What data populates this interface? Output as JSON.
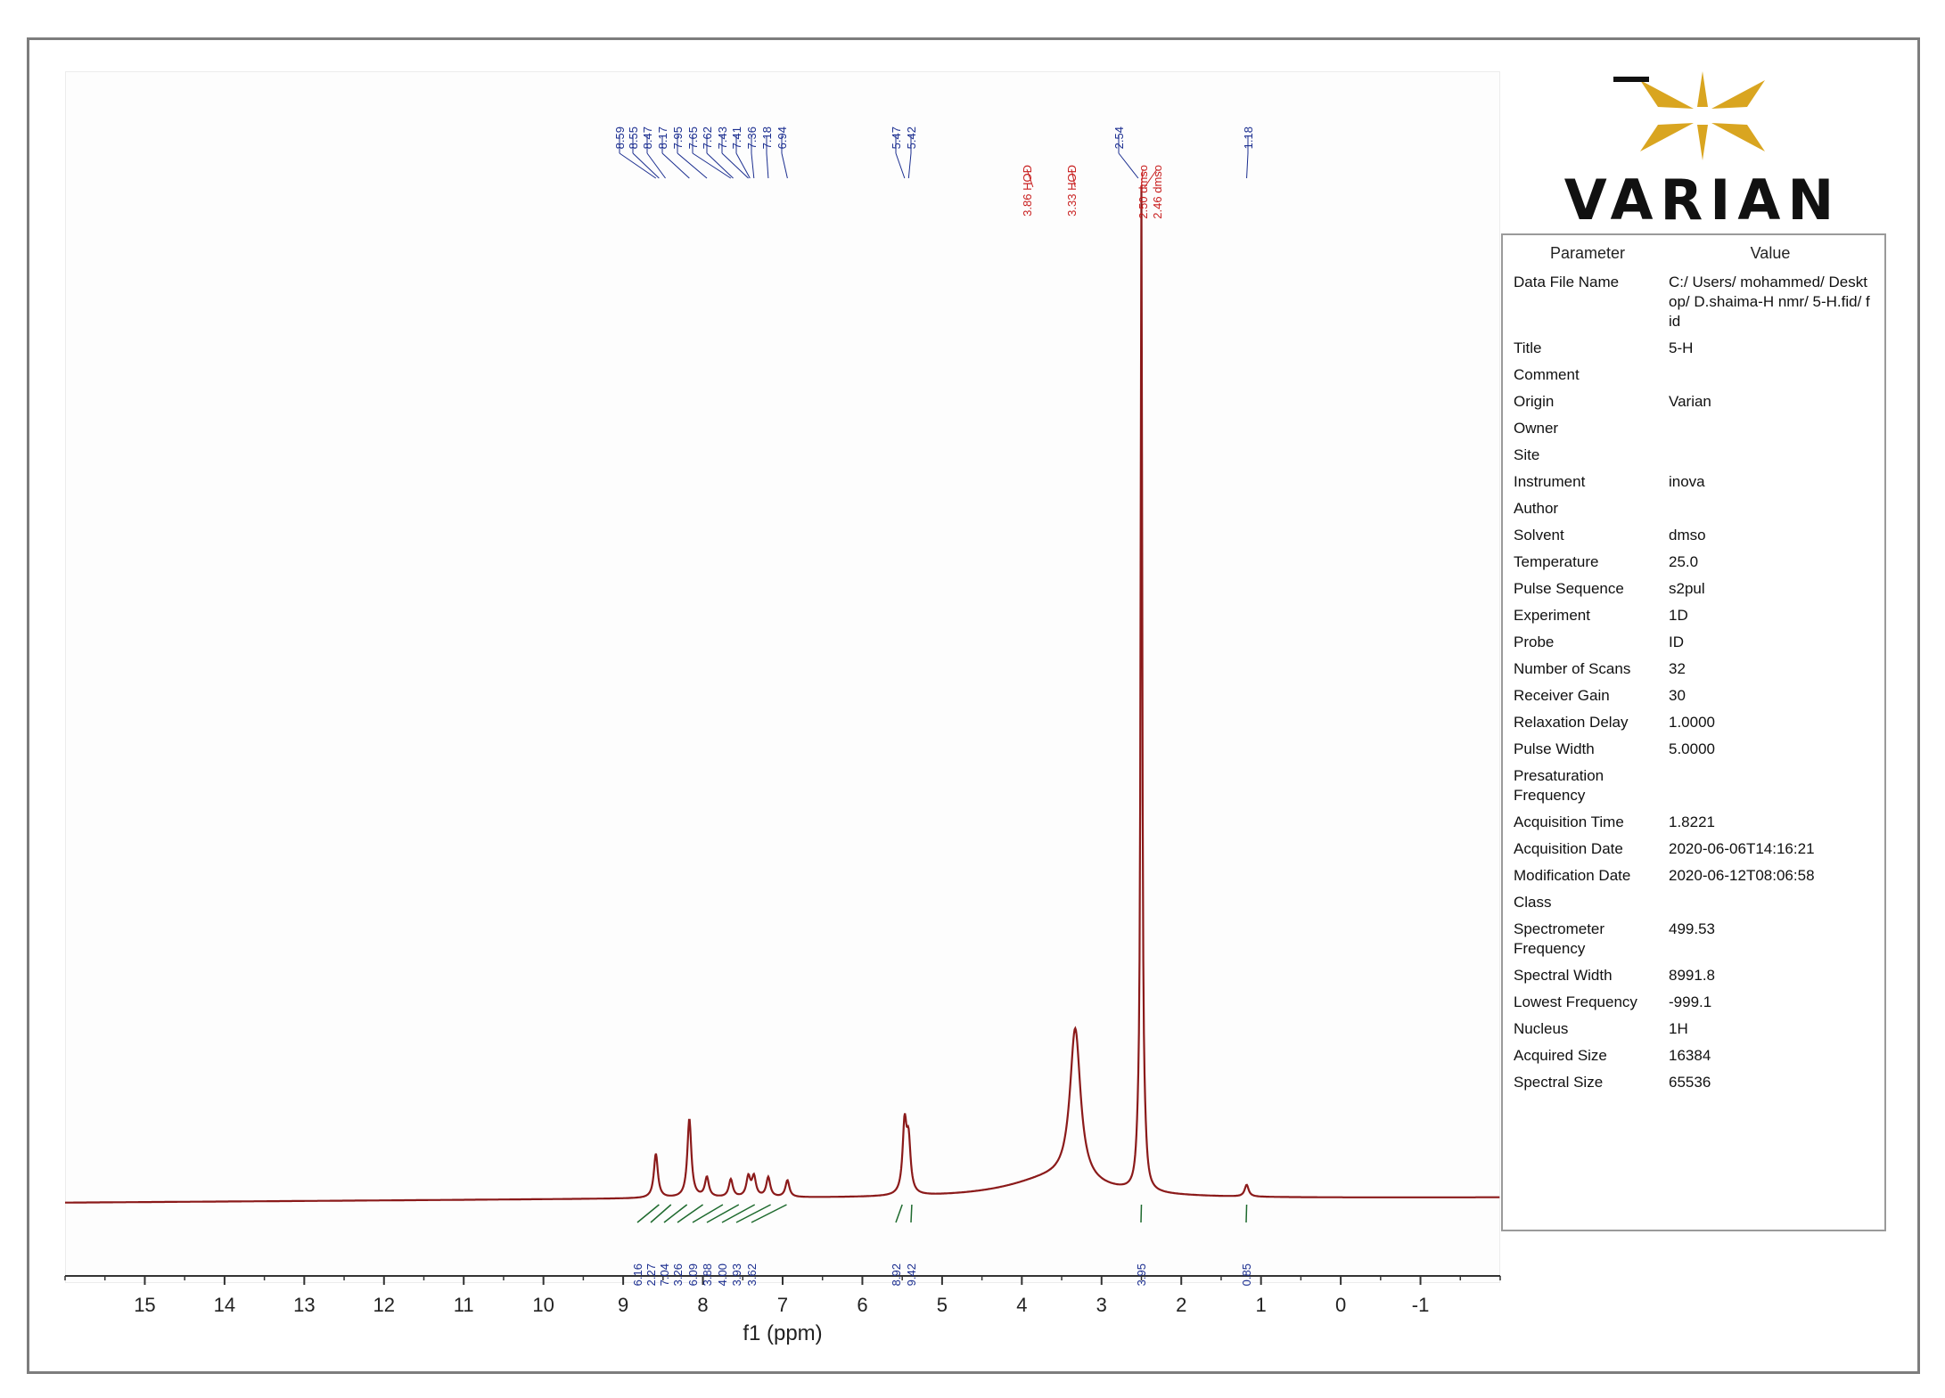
{
  "brand": {
    "name": "VARIAN",
    "logo_color": "#d9a520"
  },
  "parameters": {
    "header": {
      "col1": "Parameter",
      "col2": "Value"
    },
    "rows": [
      {
        "name": "Data File Name",
        "value": "C:/ Users/ mohammed/ Desktop/ D.shaima-H nmr/ 5-H.fid/ fid"
      },
      {
        "name": "Title",
        "value": "5-H"
      },
      {
        "name": "Comment",
        "value": ""
      },
      {
        "name": "Origin",
        "value": "Varian"
      },
      {
        "name": "Owner",
        "value": ""
      },
      {
        "name": "Site",
        "value": ""
      },
      {
        "name": "Instrument",
        "value": "inova"
      },
      {
        "name": "Author",
        "value": ""
      },
      {
        "name": "Solvent",
        "value": "dmso"
      },
      {
        "name": "Temperature",
        "value": "25.0"
      },
      {
        "name": "Pulse Sequence",
        "value": "s2pul"
      },
      {
        "name": "Experiment",
        "value": "1D"
      },
      {
        "name": "Probe",
        "value": "ID"
      },
      {
        "name": "Number of Scans",
        "value": "32"
      },
      {
        "name": "Receiver Gain",
        "value": "30"
      },
      {
        "name": "Relaxation Delay",
        "value": "1.0000"
      },
      {
        "name": "Pulse Width",
        "value": "5.0000"
      },
      {
        "name": "Presaturation Frequency",
        "value": ""
      },
      {
        "name": "Acquisition Time",
        "value": "1.8221"
      },
      {
        "name": "Acquisition Date",
        "value": "2020-06-06T14:16:21"
      },
      {
        "name": "Modification Date",
        "value": "2020-06-12T08:06:58"
      },
      {
        "name": "Class",
        "value": ""
      },
      {
        "name": "Spectrometer Frequency",
        "value": "499.53"
      },
      {
        "name": "Spectral Width",
        "value": "8991.8"
      },
      {
        "name": "Lowest Frequency",
        "value": "-999.1"
      },
      {
        "name": "Nucleus",
        "value": "1H"
      },
      {
        "name": "Acquired Size",
        "value": "16384"
      },
      {
        "name": "Spectral Size",
        "value": "65536"
      }
    ]
  },
  "chart_data": {
    "type": "line",
    "title": "",
    "xlabel": "f1 (ppm)",
    "ylabel": "",
    "x_reversed": true,
    "xlim": [
      16,
      -2
    ],
    "ylim": [
      0,
      1
    ],
    "x_ticks": [
      15,
      14,
      13,
      12,
      11,
      10,
      9,
      8,
      7,
      6,
      5,
      4,
      3,
      2,
      1,
      0,
      -1
    ],
    "x_tick_labels": [
      "15",
      "14",
      "13",
      "12",
      "11",
      "10",
      "9",
      "8",
      "7",
      "6",
      "5",
      "4",
      "3",
      "2",
      "1",
      "0",
      "-1"
    ],
    "series": [
      {
        "color": "#8b1a1a",
        "peaks": [
          {
            "ppm": 8.59,
            "height": 0.045
          },
          {
            "ppm": 8.17,
            "height": 0.08
          },
          {
            "ppm": 7.95,
            "height": 0.02
          },
          {
            "ppm": 7.65,
            "height": 0.018
          },
          {
            "ppm": 7.43,
            "height": 0.02
          },
          {
            "ppm": 7.36,
            "height": 0.02
          },
          {
            "ppm": 7.18,
            "height": 0.02
          },
          {
            "ppm": 6.94,
            "height": 0.017
          },
          {
            "ppm": 5.47,
            "height": 0.07
          },
          {
            "ppm": 5.42,
            "height": 0.05
          },
          {
            "ppm": 3.33,
            "height": 0.155
          },
          {
            "ppm": 2.54,
            "height": 0.03
          },
          {
            "ppm": 2.5,
            "height": 1.0
          },
          {
            "ppm": 2.46,
            "height": 0.03
          },
          {
            "ppm": 1.18,
            "height": 0.012
          }
        ]
      }
    ],
    "peak_labels_blue": [
      "8.59",
      "8.55",
      "8.47",
      "8.17",
      "7.95",
      "7.65",
      "7.62",
      "7.43",
      "7.41",
      "7.36",
      "7.18",
      "6.94",
      "5.47",
      "5.42",
      "2.54",
      "1.18"
    ],
    "peak_labels_red": [
      "3.86 HOD",
      "3.33 HOD",
      "2.50 dmso",
      "2.46 dmso"
    ],
    "integrals": [
      {
        "ppm": 8.55,
        "value": "6.16"
      },
      {
        "ppm": 8.4,
        "value": "2.27"
      },
      {
        "ppm": 8.2,
        "value": "7.04"
      },
      {
        "ppm": 8.0,
        "value": "3.26"
      },
      {
        "ppm": 7.75,
        "value": "6.09"
      },
      {
        "ppm": 7.55,
        "value": "3.88"
      },
      {
        "ppm": 7.35,
        "value": "4.00"
      },
      {
        "ppm": 7.15,
        "value": "3.93"
      },
      {
        "ppm": 6.95,
        "value": "3.62"
      },
      {
        "ppm": 5.5,
        "value": "8.92"
      },
      {
        "ppm": 5.38,
        "value": "9.42"
      },
      {
        "ppm": 2.5,
        "value": "3.95"
      },
      {
        "ppm": 1.18,
        "value": "0.85"
      }
    ]
  }
}
